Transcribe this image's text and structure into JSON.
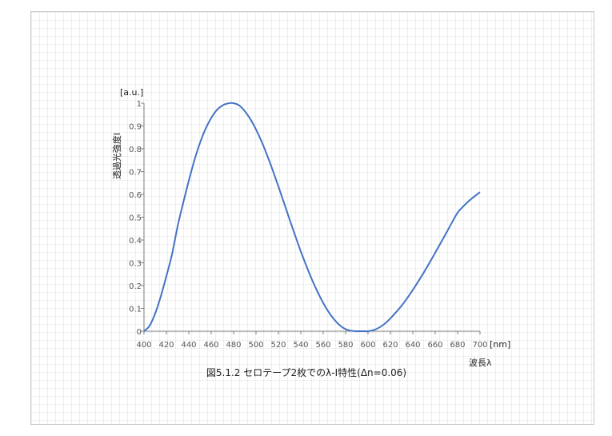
{
  "chart_data": {
    "type": "line",
    "title": "図5.1.2 セロテープ2枚でのλ-I特性(Δn=0.06)",
    "xlabel": "波長λ",
    "xunit": "[nm]",
    "ylabel": "透過光強度I",
    "yunit": "[a.u.]",
    "xlim": [
      400,
      700
    ],
    "ylim": [
      0,
      1
    ],
    "xticks": [
      "400",
      "420",
      "440",
      "460",
      "480",
      "500",
      "520",
      "540",
      "560",
      "580",
      "600",
      "620",
      "640",
      "660",
      "680",
      "700"
    ],
    "yticks": [
      "0",
      "0.1",
      "0.2",
      "0.3",
      "0.4",
      "0.5",
      "0.6",
      "0.7",
      "0.8",
      "0.9",
      "1"
    ],
    "grid": true,
    "series": [
      {
        "color": "#4472c4",
        "x": [
          400,
          405,
          410,
          415,
          420,
          425,
          430,
          435,
          440,
          445,
          450,
          455,
          460,
          465,
          470,
          475,
          480,
          485,
          490,
          495,
          500,
          505,
          510,
          515,
          520,
          525,
          530,
          535,
          540,
          545,
          550,
          555,
          560,
          565,
          570,
          575,
          580,
          585,
          590,
          595,
          600,
          605,
          610,
          615,
          620,
          625,
          630,
          635,
          640,
          645,
          650,
          655,
          660,
          665,
          670,
          675,
          680,
          685,
          690,
          695,
          700
        ],
        "y": [
          0,
          0.024,
          0.078,
          0.153,
          0.242,
          0.337,
          0.46,
          0.563,
          0.66,
          0.75,
          0.826,
          0.888,
          0.935,
          0.97,
          0.99,
          0.999,
          1.0,
          0.99,
          0.965,
          0.93,
          0.885,
          0.832,
          0.771,
          0.705,
          0.635,
          0.563,
          0.49,
          0.419,
          0.35,
          0.286,
          0.226,
          0.172,
          0.124,
          0.083,
          0.05,
          0.025,
          0.009,
          0.002,
          0.0,
          0.0,
          0.0,
          0.005,
          0.016,
          0.033,
          0.056,
          0.083,
          0.112,
          0.145,
          0.181,
          0.219,
          0.259,
          0.301,
          0.344,
          0.388,
          0.432,
          0.477,
          0.52,
          0.547,
          0.571,
          0.591,
          0.61
        ]
      }
    ]
  }
}
